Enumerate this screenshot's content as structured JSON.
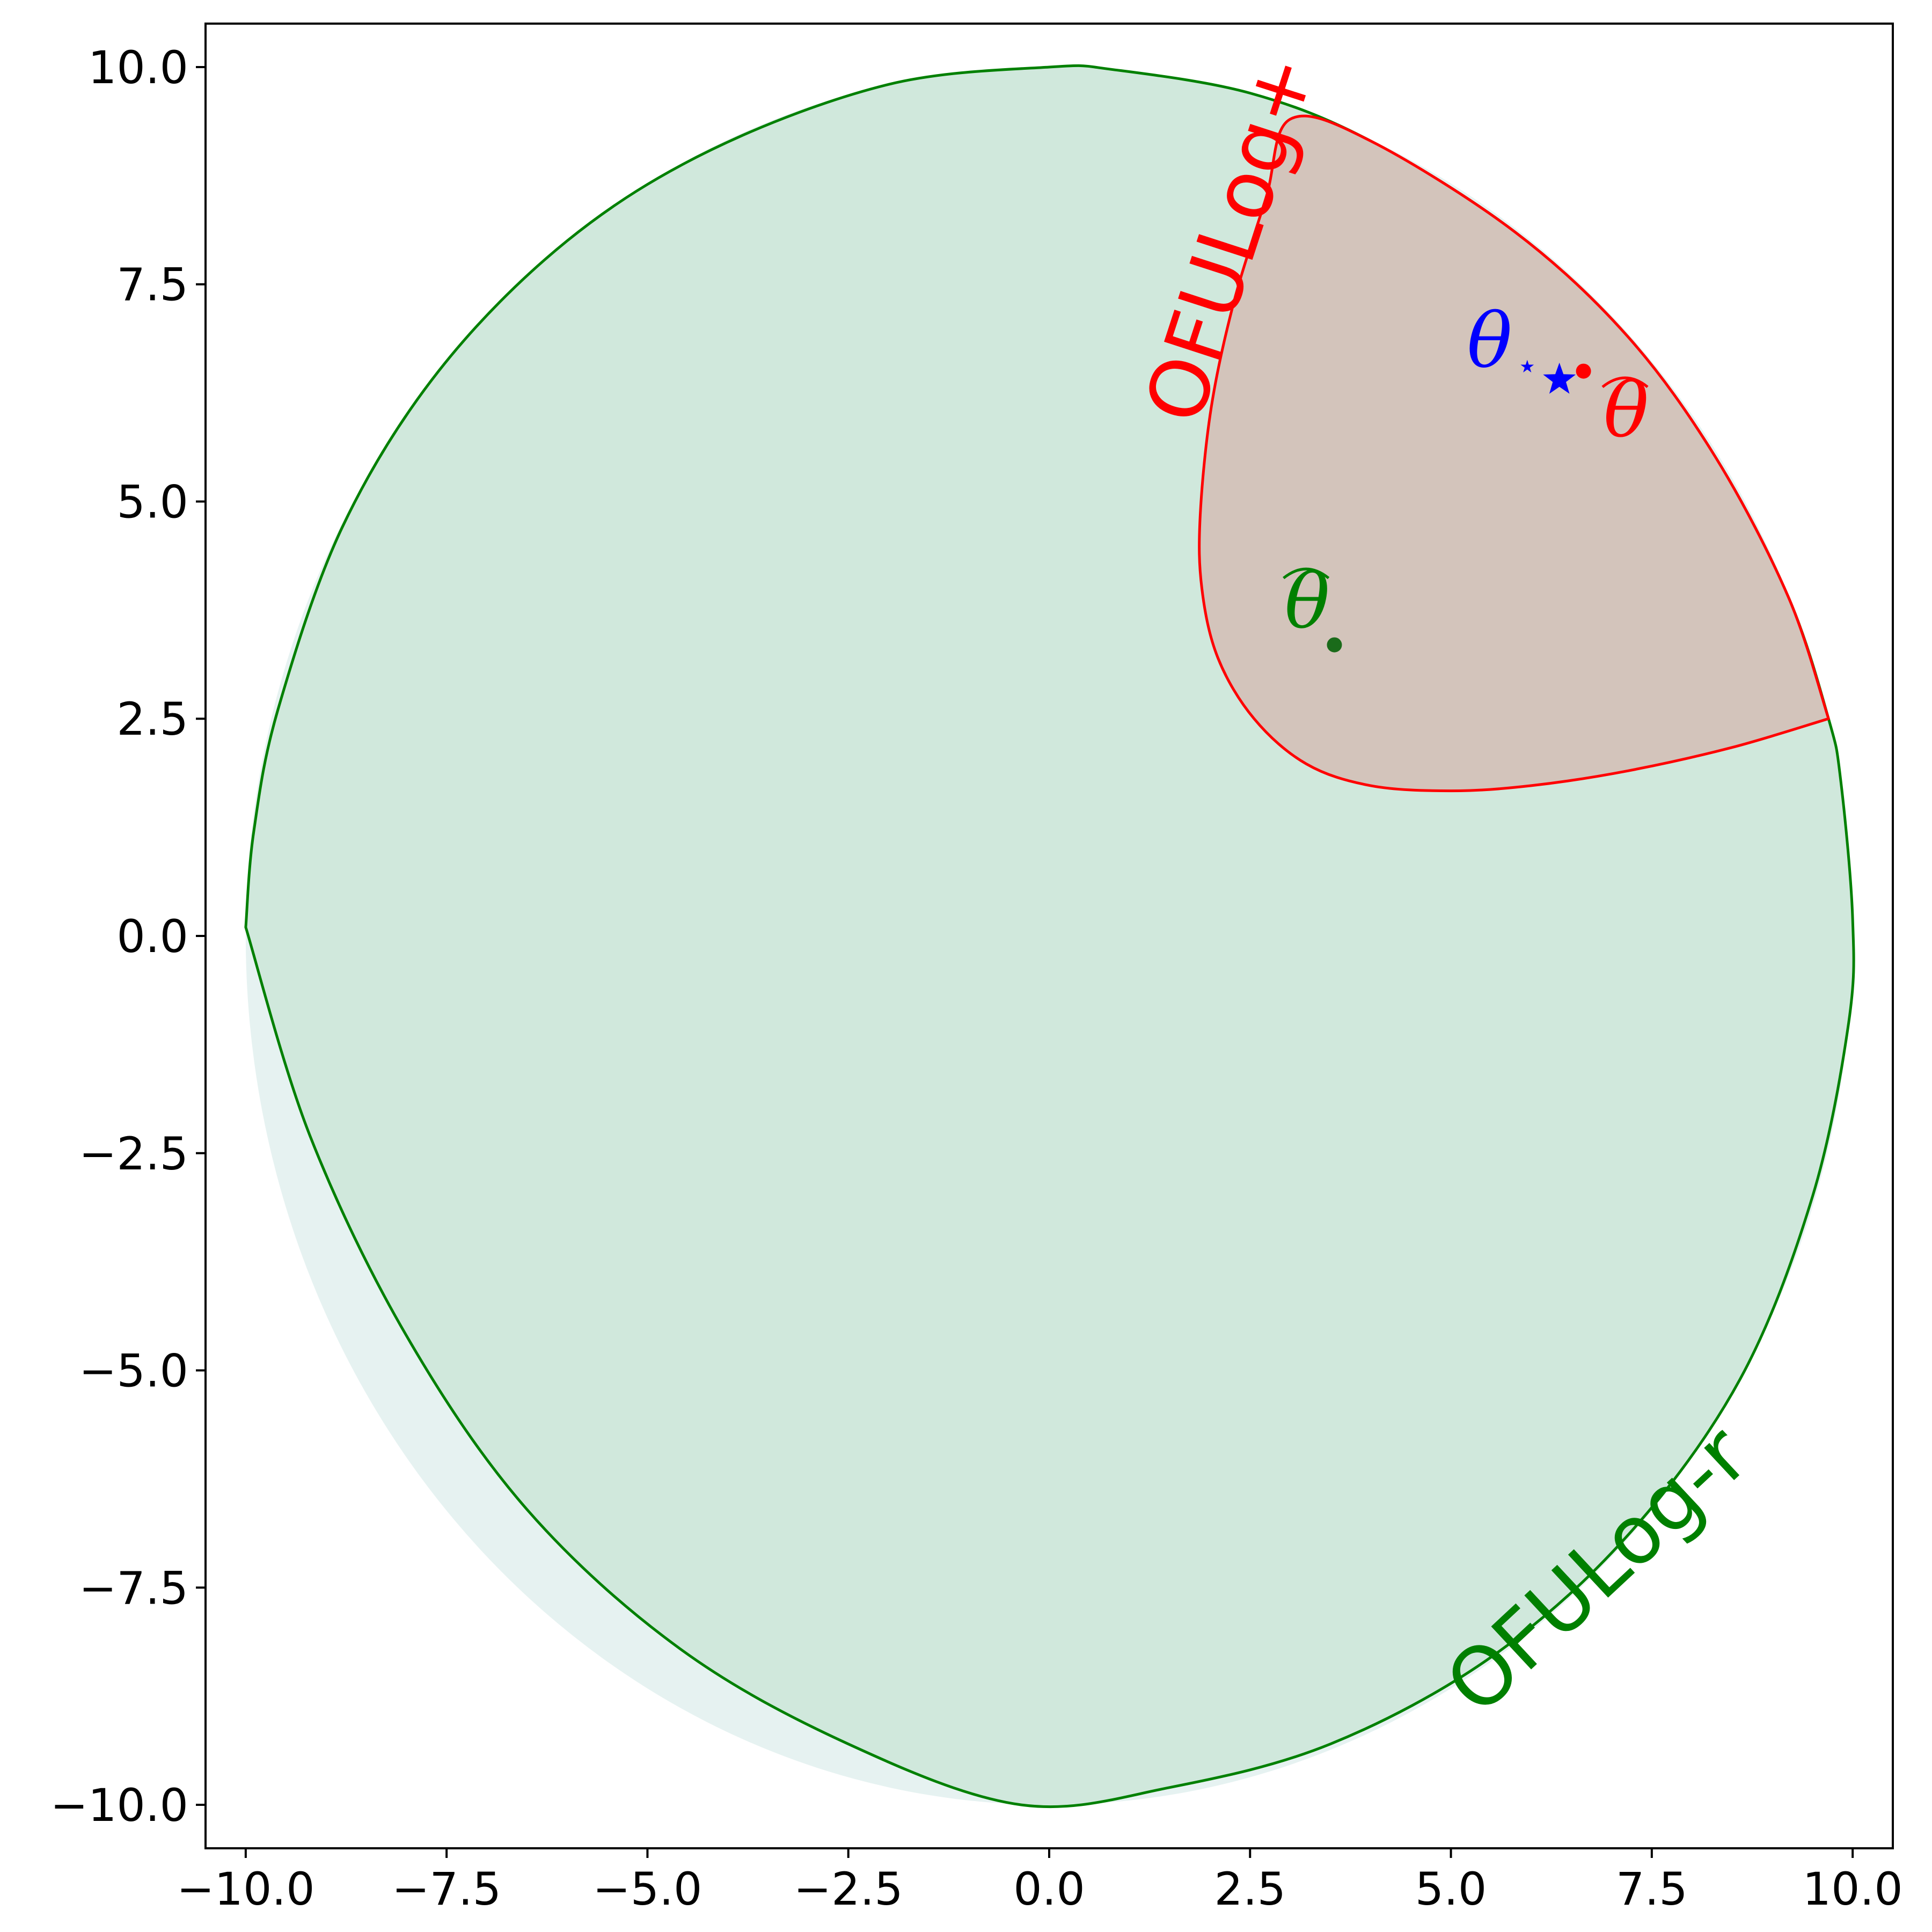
{
  "chart_data": {
    "type": "area",
    "title": "",
    "xlabel": "",
    "ylabel": "",
    "xlim": [
      -10.5,
      10.5
    ],
    "ylim": [
      -10.5,
      10.5
    ],
    "x_ticks": [
      "−10.0",
      "−7.5",
      "−5.0",
      "−2.5",
      "0.0",
      "2.5",
      "5.0",
      "7.5",
      "10.0"
    ],
    "y_ticks": [
      "−10.0",
      "−7.5",
      "−5.0",
      "−2.5",
      "0.0",
      "2.5",
      "5.0",
      "7.5",
      "10.0"
    ],
    "x_tick_values": [
      -10,
      -7.5,
      -5,
      -2.5,
      0,
      2.5,
      5,
      7.5,
      10
    ],
    "y_tick_values": [
      -10,
      -7.5,
      -5,
      -2.5,
      0,
      2.5,
      5,
      7.5,
      10
    ],
    "grid": false,
    "colors": {
      "disk_fill": "#e6f2f1",
      "green_fill": "#d0e8dc",
      "green_line": "#008000",
      "red_fill": "#d3c4bb",
      "red_line": "#ff0000",
      "blue": "#0000ff",
      "dark_green_point": "#1a6b1a"
    },
    "disk": {
      "center": [
        0,
        0
      ],
      "radius": 10
    },
    "green_region": {
      "name": "OFULog-r",
      "boundary": [
        [
          -10,
          0.1
        ],
        [
          -9.2,
          -2.3
        ],
        [
          -8.0,
          -4.6
        ],
        [
          -6.5,
          -6.6
        ],
        [
          -4.6,
          -8.2
        ],
        [
          -2.5,
          -9.3
        ],
        [
          -0.35,
          -10
        ],
        [
          1.5,
          -9.8
        ],
        [
          3.5,
          -9.3
        ],
        [
          5.5,
          -8.3
        ],
        [
          7.2,
          -6.9
        ],
        [
          8.6,
          -5.1
        ],
        [
          9.5,
          -3.0
        ],
        [
          9.95,
          -1.0
        ],
        [
          10,
          0.2
        ],
        [
          9.85,
          1.8
        ],
        [
          9.7,
          2.5
        ],
        [
          9.2,
          3.9
        ],
        [
          8.3,
          5.5
        ],
        [
          7.2,
          6.9
        ],
        [
          5.8,
          8.1
        ],
        [
          4.0,
          9.15
        ],
        [
          2.5,
          9.7
        ],
        [
          0.8,
          9.97
        ],
        [
          0,
          10
        ],
        [
          -2.0,
          9.8
        ],
        [
          -4.2,
          9.05
        ],
        [
          -6.0,
          8.0
        ],
        [
          -7.6,
          6.5
        ],
        [
          -8.8,
          4.7
        ],
        [
          -9.6,
          2.6
        ],
        [
          -9.9,
          1.2
        ],
        [
          -10,
          0.1
        ]
      ]
    },
    "red_region": {
      "name": "OFULog+",
      "boundary": [
        [
          9.7,
          2.5
        ],
        [
          8.5,
          2.17
        ],
        [
          7.2,
          1.9
        ],
        [
          6.0,
          1.73
        ],
        [
          5.0,
          1.67
        ],
        [
          4.0,
          1.73
        ],
        [
          3.2,
          1.98
        ],
        [
          2.55,
          2.5
        ],
        [
          2.1,
          3.2
        ],
        [
          1.9,
          4.0
        ],
        [
          1.88,
          4.85
        ],
        [
          2.02,
          6.1
        ],
        [
          2.3,
          7.3
        ],
        [
          2.7,
          8.5
        ],
        [
          3.0,
          9.4
        ],
        [
          4.0,
          9.15
        ],
        [
          5.8,
          8.1
        ],
        [
          7.2,
          6.9
        ],
        [
          8.3,
          5.5
        ],
        [
          9.2,
          3.9
        ],
        [
          9.7,
          2.5
        ]
      ]
    },
    "points": [
      {
        "label": "θ",
        "x": 6.35,
        "y": 6.4,
        "marker": "star",
        "color": "#0000ff"
      },
      {
        "label": "θ̂",
        "x": 6.65,
        "y": 6.5,
        "marker": "dot",
        "color": "#ff0000"
      },
      {
        "label": "θ̂",
        "x": 3.55,
        "y": 3.35,
        "marker": "dot",
        "color": "#1a6b1a"
      },
      {
        "label": "",
        "x": 5.95,
        "y": 6.55,
        "marker": "small-star",
        "color": "#0000ff"
      }
    ],
    "labels": {
      "ofulog_plus": "OFULog+",
      "ofulog_r": "OFULog-r",
      "theta": "θ",
      "theta_hat": "θ"
    }
  }
}
